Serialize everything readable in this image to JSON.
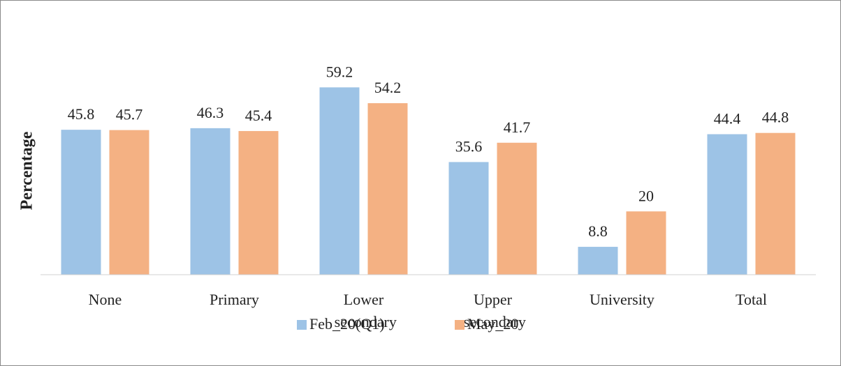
{
  "chart_data": {
    "type": "bar",
    "y_label": "Percentage",
    "categories": [
      "None",
      "Primary",
      "Lower secondary",
      "Upper secondary",
      "University",
      "Total"
    ],
    "series": [
      {
        "name": "Feb_20(Q1)",
        "color": "#9dc3e6",
        "values": [
          45.8,
          46.3,
          59.2,
          35.6,
          8.8,
          44.4
        ]
      },
      {
        "name": "May_20",
        "color": "#f4b183",
        "values": [
          45.7,
          45.4,
          54.2,
          41.7,
          20,
          44.8
        ]
      }
    ],
    "ylim": [
      0,
      65
    ],
    "grid": false,
    "legend": "bottom"
  }
}
